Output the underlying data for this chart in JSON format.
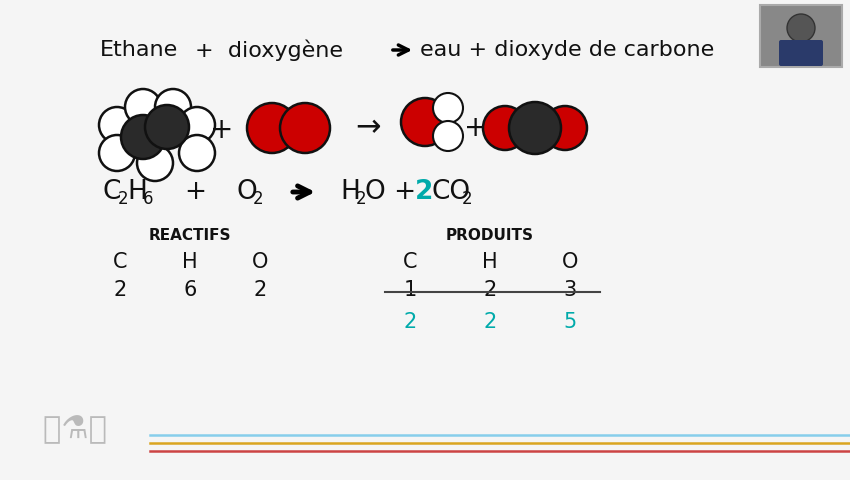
{
  "bg_color": "#f5f5f5",
  "black_color": "#111111",
  "dark_gray": "#2a2a2a",
  "red_color": "#CC0000",
  "white_color": "#ffffff",
  "cyan_color": "#00AAAA",
  "strikethrough_color": "#444444",
  "elements": [
    "C",
    "H",
    "O"
  ],
  "reactifs_values": [
    "2",
    "6",
    "2"
  ],
  "produits_initial": [
    "1",
    "2",
    "3"
  ],
  "produits_final": [
    "2",
    "2",
    "5"
  ],
  "bottom_line1_color": "#87CEEB",
  "bottom_line2_color": "#DAA520",
  "bottom_line3_color": "#CC4444"
}
